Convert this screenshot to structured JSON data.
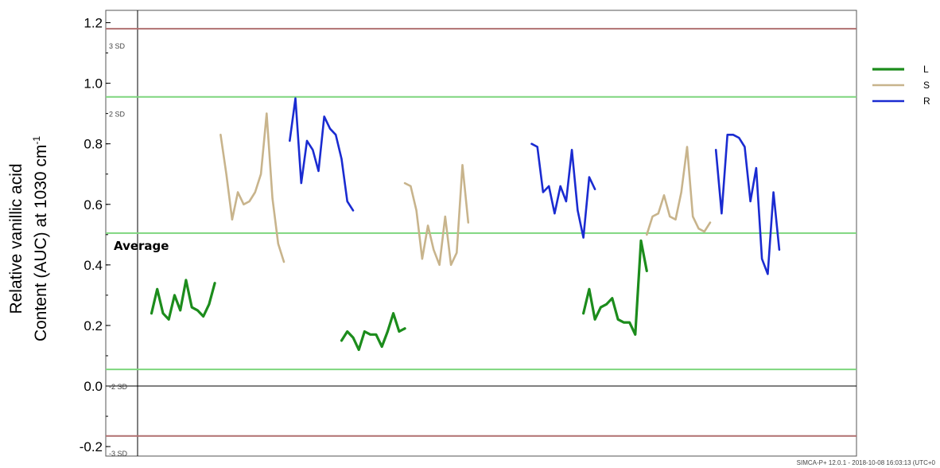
{
  "chart_data": {
    "type": "line",
    "ylabel_line1": "Relative vanillic acid",
    "ylabel_line2": "Content (AUC) at 1030 cm",
    "ylabel_sup": "-1",
    "ylim": [
      -0.22,
      1.25
    ],
    "yticks": [
      "1.2",
      "1.0",
      "0.8",
      "0.6",
      "0.4",
      "0.2",
      "0.0",
      "-0.2"
    ],
    "ytick_values": [
      1.2,
      1.0,
      0.8,
      0.6,
      0.4,
      0.2,
      0.0,
      -0.2
    ],
    "xlim": [
      0,
      124
    ],
    "grid": false,
    "legend_position": "right",
    "reference_lines": [
      {
        "value": 1.18,
        "label": "3 SD",
        "color": "#b07070"
      },
      {
        "value": 0.955,
        "label": "2 SD",
        "color": "#7ed67e"
      },
      {
        "value": 0.505,
        "label": "Average",
        "color": "#7ed67e"
      },
      {
        "value": 0.055,
        "label": "-2 SD",
        "color": "#7ed67e"
      },
      {
        "value": -0.165,
        "label": "-3 SD",
        "color": "#b07070"
      }
    ],
    "series": [
      {
        "name": "L",
        "color": "#1c8c1c",
        "width": 3.2,
        "segments": [
          [
            [
              2,
              0.24
            ],
            [
              3,
              0.32
            ],
            [
              4,
              0.24
            ],
            [
              5,
              0.22
            ],
            [
              6,
              0.3
            ],
            [
              7,
              0.25
            ],
            [
              8,
              0.35
            ],
            [
              9,
              0.26
            ],
            [
              10,
              0.25
            ],
            [
              11,
              0.23
            ],
            [
              12,
              0.27
            ],
            [
              13,
              0.34
            ]
          ],
          [
            [
              35,
              0.15
            ],
            [
              36,
              0.18
            ],
            [
              37,
              0.16
            ],
            [
              38,
              0.12
            ],
            [
              39,
              0.18
            ],
            [
              40,
              0.17
            ],
            [
              41,
              0.17
            ],
            [
              42,
              0.13
            ],
            [
              43,
              0.18
            ],
            [
              44,
              0.24
            ],
            [
              45,
              0.18
            ],
            [
              46,
              0.19
            ]
          ],
          [
            [
              77,
              0.24
            ],
            [
              78,
              0.32
            ],
            [
              79,
              0.22
            ],
            [
              80,
              0.26
            ],
            [
              81,
              0.27
            ],
            [
              82,
              0.29
            ],
            [
              83,
              0.22
            ],
            [
              84,
              0.21
            ],
            [
              85,
              0.21
            ],
            [
              86,
              0.17
            ],
            [
              87,
              0.48
            ],
            [
              88,
              0.38
            ]
          ]
        ]
      },
      {
        "name": "S",
        "color": "#c8b48c",
        "width": 2.6,
        "segments": [
          [
            [
              14,
              0.83
            ],
            [
              15,
              0.7
            ],
            [
              16,
              0.55
            ],
            [
              17,
              0.64
            ],
            [
              18,
              0.6
            ],
            [
              19,
              0.61
            ],
            [
              20,
              0.64
            ],
            [
              21,
              0.7
            ],
            [
              22,
              0.9
            ],
            [
              23,
              0.62
            ],
            [
              24,
              0.47
            ],
            [
              25,
              0.41
            ]
          ],
          [
            [
              46,
              0.67
            ],
            [
              47,
              0.66
            ],
            [
              48,
              0.58
            ],
            [
              49,
              0.42
            ],
            [
              50,
              0.53
            ],
            [
              51,
              0.45
            ],
            [
              52,
              0.4
            ],
            [
              53,
              0.56
            ],
            [
              54,
              0.4
            ],
            [
              55,
              0.44
            ],
            [
              56,
              0.73
            ],
            [
              57,
              0.54
            ]
          ],
          [
            [
              88,
              0.5
            ],
            [
              89,
              0.56
            ],
            [
              90,
              0.57
            ],
            [
              91,
              0.63
            ],
            [
              92,
              0.56
            ],
            [
              93,
              0.55
            ],
            [
              94,
              0.64
            ],
            [
              95,
              0.79
            ],
            [
              96,
              0.56
            ],
            [
              97,
              0.52
            ],
            [
              98,
              0.51
            ],
            [
              99,
              0.54
            ]
          ]
        ]
      },
      {
        "name": "R",
        "color": "#1a2bd1",
        "width": 2.6,
        "segments": [
          [
            [
              26,
              0.81
            ],
            [
              27,
              0.95
            ],
            [
              28,
              0.67
            ],
            [
              29,
              0.81
            ],
            [
              30,
              0.78
            ],
            [
              31,
              0.71
            ],
            [
              32,
              0.89
            ],
            [
              33,
              0.85
            ],
            [
              34,
              0.83
            ],
            [
              35,
              0.75
            ],
            [
              36,
              0.61
            ],
            [
              37,
              0.58
            ]
          ],
          [
            [
              68,
              0.8
            ],
            [
              69,
              0.79
            ],
            [
              70,
              0.64
            ],
            [
              71,
              0.66
            ],
            [
              72,
              0.57
            ],
            [
              73,
              0.66
            ],
            [
              74,
              0.61
            ],
            [
              75,
              0.78
            ],
            [
              76,
              0.58
            ],
            [
              77,
              0.49
            ],
            [
              78,
              0.69
            ],
            [
              79,
              0.65
            ]
          ],
          [
            [
              100,
              0.78
            ],
            [
              101,
              0.57
            ],
            [
              102,
              0.83
            ],
            [
              103,
              0.83
            ],
            [
              104,
              0.82
            ],
            [
              105,
              0.79
            ],
            [
              106,
              0.61
            ],
            [
              107,
              0.72
            ],
            [
              108,
              0.42
            ],
            [
              109,
              0.37
            ],
            [
              110,
              0.64
            ],
            [
              111,
              0.45
            ]
          ]
        ]
      }
    ]
  },
  "footer": "SIMCA-P+ 12.0.1 - 2018-10-08 16:03:13 (UTC+0"
}
